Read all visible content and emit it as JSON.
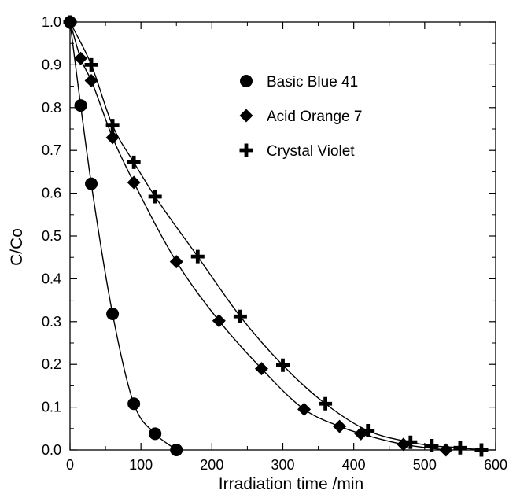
{
  "chart_data": {
    "type": "scatter",
    "title": "",
    "xlabel": "Irradiation time /min",
    "ylabel": "C/Co",
    "xlim": [
      0,
      600
    ],
    "ylim": [
      0,
      1.0
    ],
    "xticks": [
      "0",
      "100",
      "200",
      "300",
      "400",
      "500",
      "600"
    ],
    "yticks": [
      "0.0",
      "0.1",
      "0.2",
      "0.3",
      "0.4",
      "0.5",
      "0.6",
      "0.7",
      "0.8",
      "0.9",
      "1.0"
    ],
    "grid": false,
    "legend_position": "top-right",
    "series": [
      {
        "name": "Basic Blue 41",
        "marker": "circle",
        "color": "#000000",
        "x": [
          0,
          15,
          30,
          60,
          90,
          120,
          150
        ],
        "y": [
          1.0,
          0.805,
          0.622,
          0.318,
          0.108,
          0.038,
          0.0
        ]
      },
      {
        "name": "Acid Orange 7",
        "marker": "diamond",
        "color": "#000000",
        "x": [
          0,
          15,
          30,
          60,
          90,
          150,
          210,
          270,
          330,
          380,
          410,
          470,
          530
        ],
        "y": [
          1.0,
          0.915,
          0.863,
          0.73,
          0.625,
          0.44,
          0.302,
          0.19,
          0.095,
          0.055,
          0.038,
          0.013,
          0.0
        ]
      },
      {
        "name": "Crystal Violet",
        "marker": "plus",
        "color": "#000000",
        "x": [
          0,
          30,
          60,
          90,
          120,
          180,
          240,
          300,
          360,
          420,
          480,
          510,
          550,
          580
        ],
        "y": [
          1.0,
          0.9,
          0.758,
          0.672,
          0.592,
          0.452,
          0.312,
          0.198,
          0.108,
          0.045,
          0.018,
          0.01,
          0.005,
          0.0
        ]
      }
    ]
  }
}
